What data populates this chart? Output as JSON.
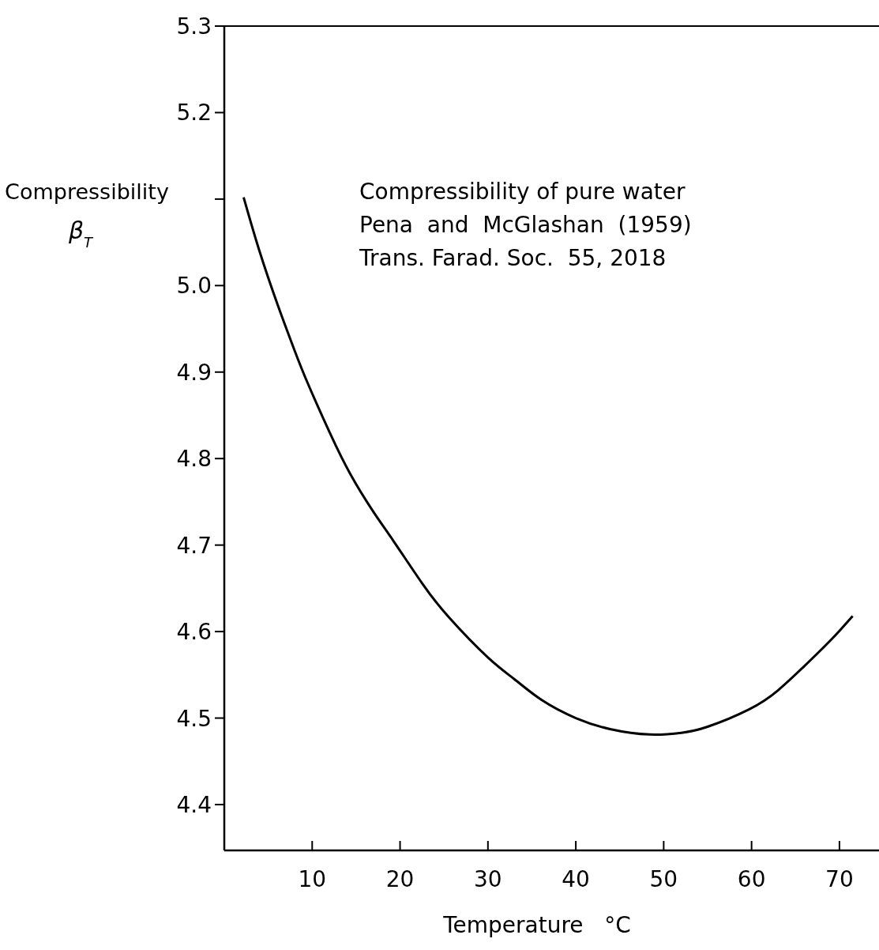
{
  "chart_data": {
    "type": "line",
    "xlabel": "Temperature   °C",
    "ylabel": "Compressibility\nβ$_{T}$",
    "annotations": [
      "Compressibility of pure water",
      "Pena  and  McGlashan  (1959)",
      "Trans. Farad. Soc.  55, 2018"
    ],
    "xlim": [
      0,
      74.5
    ],
    "ylim": [
      4.347,
      5.3
    ],
    "xticks": [
      10,
      20,
      30,
      40,
      50,
      60,
      70
    ],
    "yticks": [
      4.4,
      4.5,
      4.6,
      4.7,
      4.8,
      4.9,
      {
        "value": 5,
        "label": "5.0"
      },
      {
        "value": 5.1,
        "label": null
      },
      5.2,
      5.3
    ],
    "grid": false,
    "marker": "none",
    "line_style": "solid",
    "series": [
      {
        "color": "#000000",
        "x": [
          2.2,
          4,
          6.1,
          8,
          9.5,
          12,
          14.4,
          17,
          19.3,
          22.5,
          25.6,
          30,
          33,
          36.1,
          40,
          44,
          48.4,
          52,
          55,
          59.7,
          63,
          66,
          69,
          71.5
        ],
        "values": [
          5.102,
          5.04,
          4.977,
          4.925,
          4.887,
          4.83,
          4.781,
          4.738,
          4.704,
          4.656,
          4.616,
          4.57,
          4.545,
          4.521,
          4.5,
          4.487,
          4.481,
          4.483,
          4.49,
          4.51,
          4.532,
          4.56,
          4.59,
          4.618
        ]
      }
    ]
  }
}
